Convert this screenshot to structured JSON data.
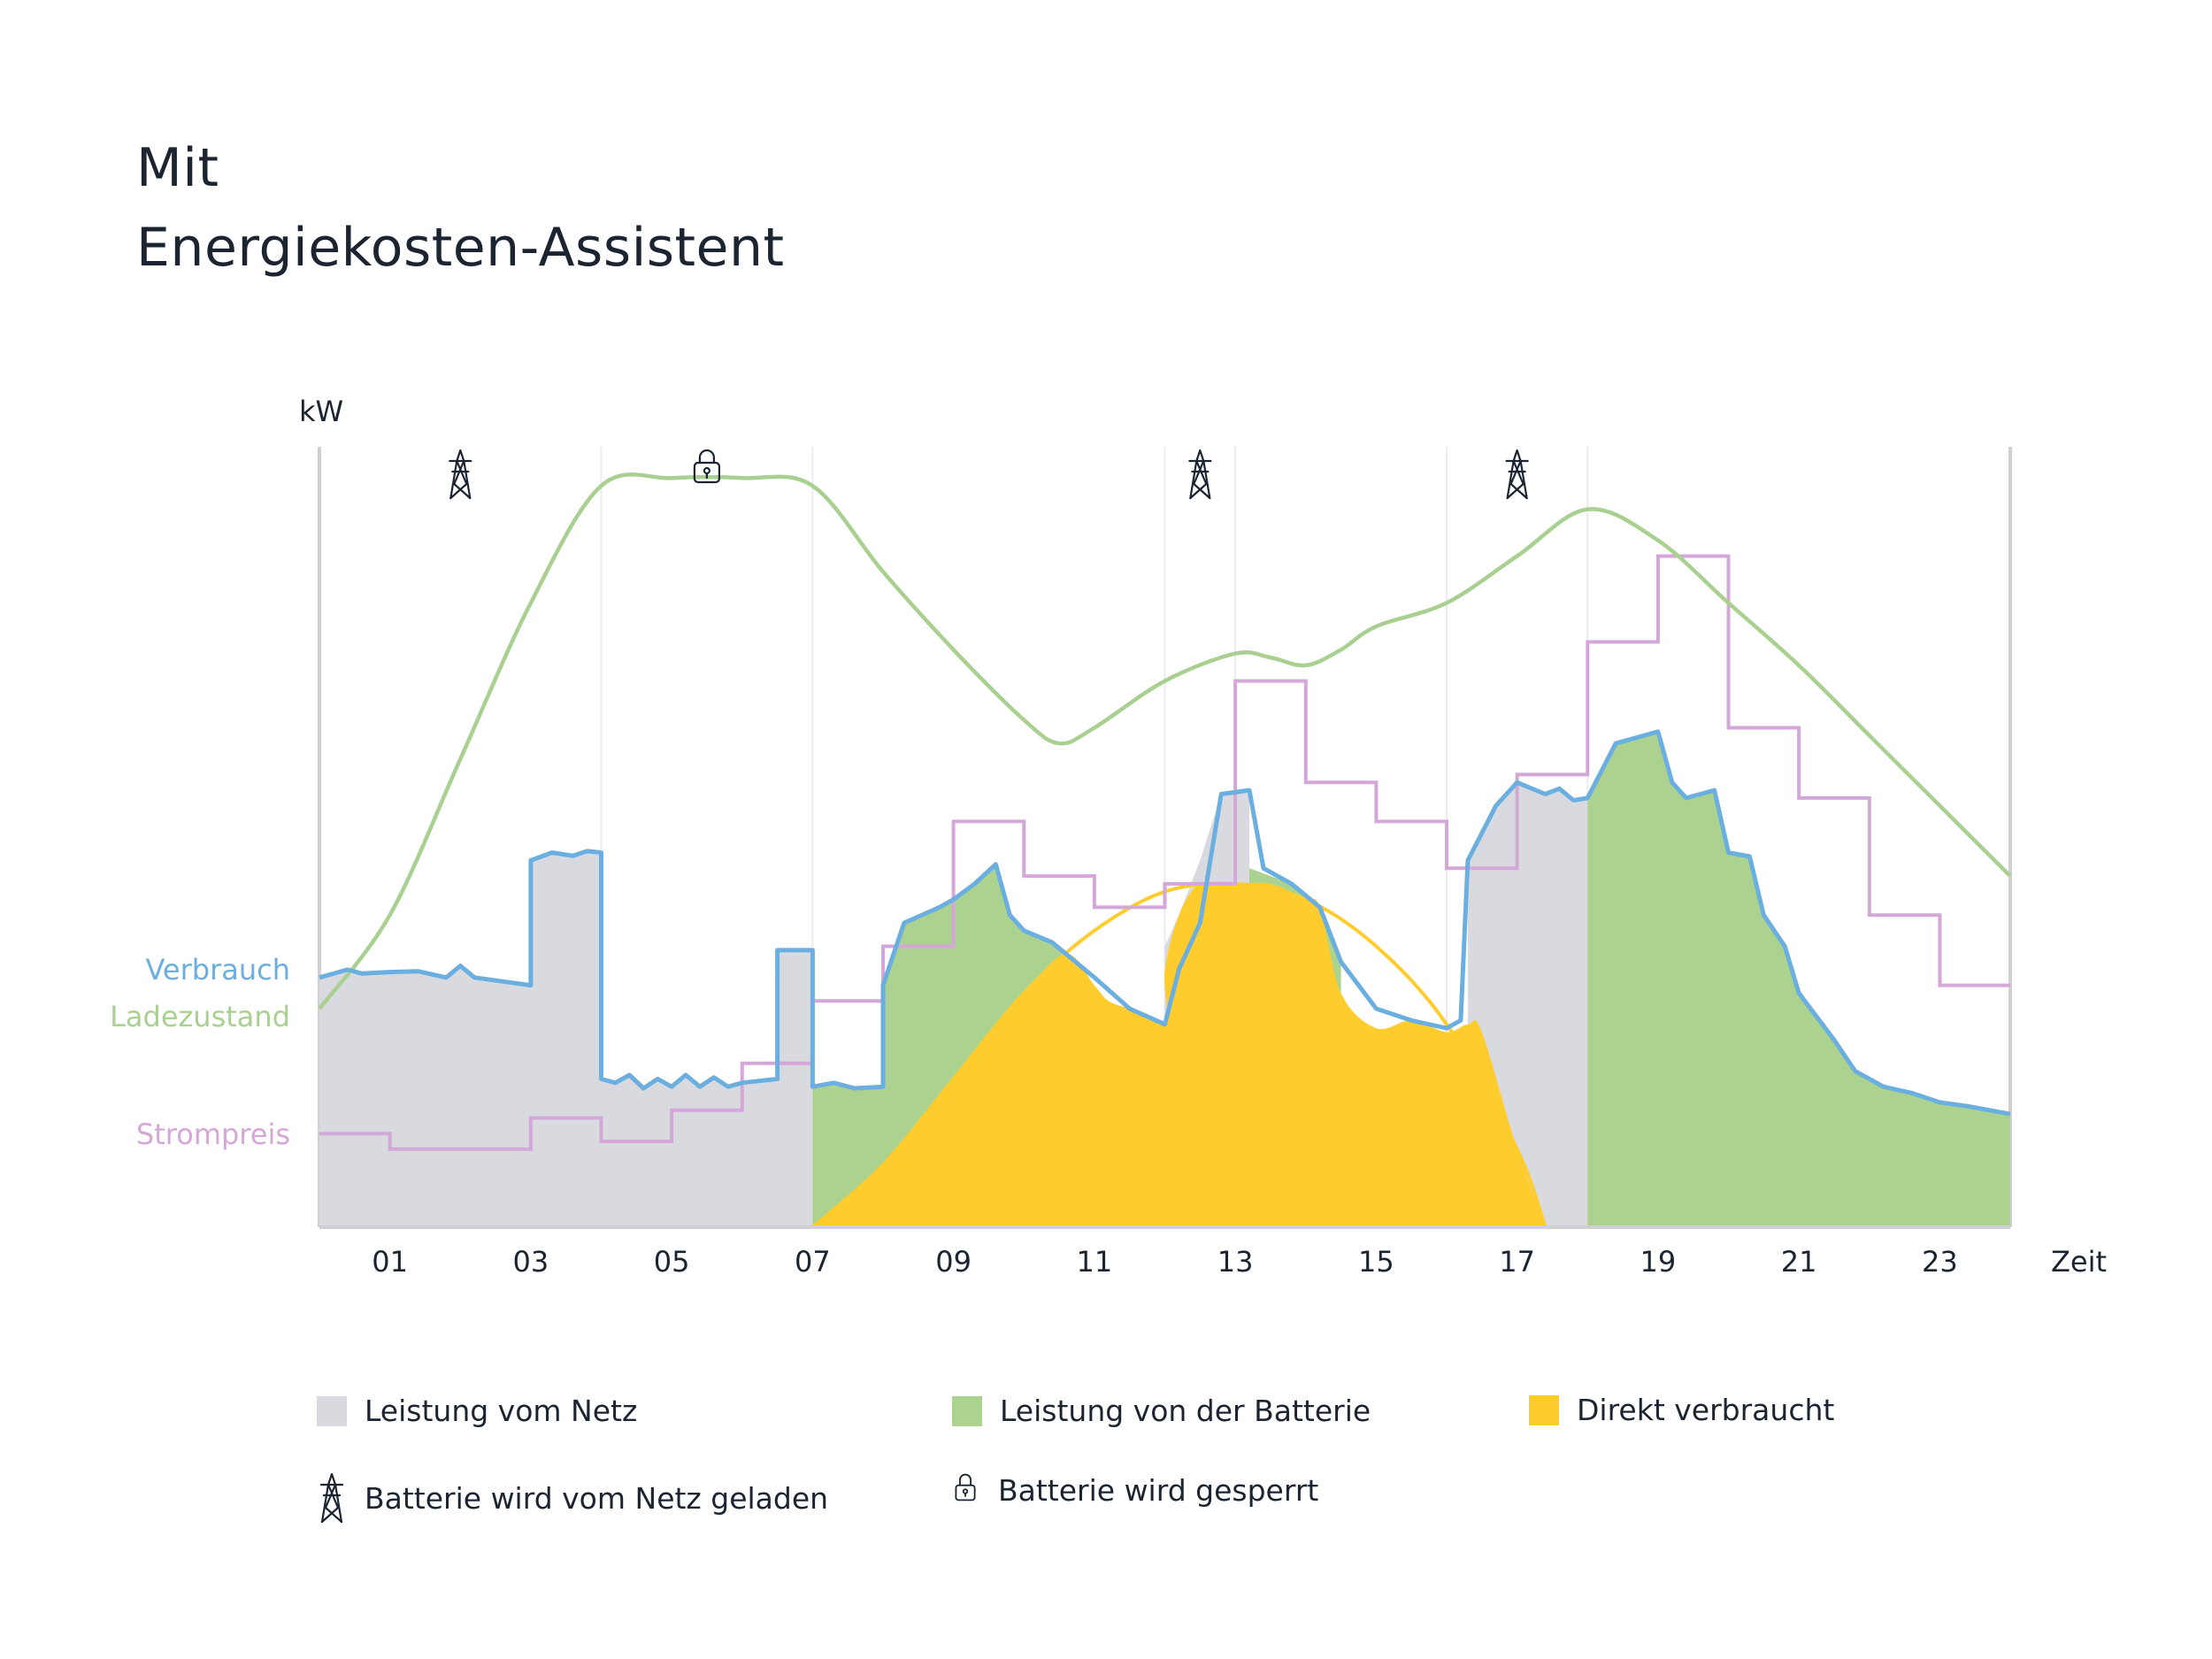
{
  "title": {
    "line1": "Mit",
    "line2": "Energiekosten-Assistent"
  },
  "colors": {
    "grid": "#d8d8dc",
    "verbrauch": "#6aafdf",
    "ladezustand": "#a9d090",
    "strompreis": "#d3a8d8",
    "netz_fill": "#d9dadf",
    "batterie_fill": "#acd290",
    "direkt_fill": "#ffcc2e",
    "icon": "#1b2430"
  },
  "chart_data": {
    "type": "area",
    "ylabel": "kW",
    "xlabel": "Zeit",
    "xlim": [
      0,
      24
    ],
    "ylim": [
      0,
      100
    ],
    "x_ticks": [
      "01",
      "03",
      "05",
      "07",
      "09",
      "11",
      "13",
      "15",
      "17",
      "19",
      "21",
      "23"
    ],
    "series_labels": {
      "verbrauch": "Verbrauch",
      "ladezustand": "Ladezustand",
      "strompreis": "Strompreis"
    },
    "events": [
      {
        "type": "grid-charge",
        "hour": 2
      },
      {
        "type": "lock",
        "hour": 5.5
      },
      {
        "type": "grid-charge",
        "hour": 12.5
      },
      {
        "type": "grid-charge",
        "hour": 17
      }
    ],
    "verbrauch": [
      [
        0,
        32
      ],
      [
        0.4,
        33
      ],
      [
        0.6,
        32.5
      ],
      [
        1,
        32.7
      ],
      [
        1.4,
        32.8
      ],
      [
        1.8,
        32
      ],
      [
        2,
        33.5
      ],
      [
        2.2,
        32
      ],
      [
        2.6,
        31.5
      ],
      [
        3,
        31
      ],
      [
        3,
        47
      ],
      [
        3.3,
        48
      ],
      [
        3.6,
        47.6
      ],
      [
        3.8,
        48.2
      ],
      [
        4,
        48
      ],
      [
        4,
        19
      ],
      [
        4.2,
        18.5
      ],
      [
        4.4,
        19.5
      ],
      [
        4.6,
        17.8
      ],
      [
        4.8,
        19
      ],
      [
        5,
        18
      ],
      [
        5.2,
        19.5
      ],
      [
        5.4,
        18
      ],
      [
        5.6,
        19.2
      ],
      [
        5.8,
        18
      ],
      [
        6,
        18.5
      ],
      [
        6.5,
        19
      ],
      [
        6.5,
        35.5
      ],
      [
        7,
        35.5
      ],
      [
        7,
        18
      ],
      [
        7.3,
        18.5
      ],
      [
        7.6,
        17.8
      ],
      [
        8,
        18
      ],
      [
        8,
        31
      ],
      [
        8.3,
        39
      ],
      [
        8.8,
        41
      ],
      [
        9,
        42
      ],
      [
        9.3,
        44
      ],
      [
        9.6,
        46.5
      ],
      [
        9.8,
        40
      ],
      [
        10,
        38
      ],
      [
        10.4,
        36.5
      ],
      [
        10.6,
        35
      ],
      [
        11,
        32
      ],
      [
        11.5,
        28
      ],
      [
        12,
        26
      ],
      [
        12.2,
        33
      ],
      [
        12.5,
        39
      ],
      [
        12.8,
        55.5
      ],
      [
        13.2,
        56
      ],
      [
        13.4,
        46
      ],
      [
        13.8,
        44
      ],
      [
        14.2,
        41
      ],
      [
        14.5,
        34
      ],
      [
        15,
        28
      ],
      [
        15.5,
        26.5
      ],
      [
        16,
        25.5
      ],
      [
        16.2,
        26.5
      ],
      [
        16.3,
        47
      ],
      [
        16.7,
        54
      ],
      [
        17,
        57
      ],
      [
        17.4,
        55.5
      ],
      [
        17.6,
        56.2
      ],
      [
        17.8,
        54.7
      ],
      [
        18,
        55
      ],
      [
        18.4,
        62
      ],
      [
        18.8,
        63
      ],
      [
        19,
        63.5
      ],
      [
        19.2,
        57
      ],
      [
        19.4,
        55
      ],
      [
        19.8,
        56
      ],
      [
        20,
        48
      ],
      [
        20.3,
        47.5
      ],
      [
        20.5,
        40
      ],
      [
        20.8,
        36
      ],
      [
        21,
        30
      ],
      [
        21.5,
        24
      ],
      [
        21.8,
        20
      ],
      [
        22.2,
        18
      ],
      [
        22.6,
        17.2
      ],
      [
        23,
        16
      ],
      [
        23.4,
        15.5
      ],
      [
        24,
        14.5
      ]
    ],
    "ladezustand": [
      [
        0,
        28
      ],
      [
        1,
        40
      ],
      [
        2,
        60
      ],
      [
        3,
        80
      ],
      [
        4,
        95
      ],
      [
        5,
        96
      ],
      [
        6,
        96
      ],
      [
        7,
        95
      ],
      [
        8,
        84
      ],
      [
        9,
        74
      ],
      [
        10,
        65
      ],
      [
        10.5,
        62
      ],
      [
        11,
        64
      ],
      [
        12,
        70
      ],
      [
        13,
        73.5
      ],
      [
        13.5,
        73
      ],
      [
        14,
        72
      ],
      [
        14.5,
        74
      ],
      [
        15,
        77
      ],
      [
        16,
        80
      ],
      [
        17,
        86
      ],
      [
        18,
        92
      ],
      [
        19,
        88
      ],
      [
        20,
        80
      ],
      [
        21,
        72
      ],
      [
        22,
        63
      ],
      [
        23,
        54
      ],
      [
        24,
        45
      ]
    ],
    "strompreis": [
      0,
      -1,
      2,
      2,
      3,
      4,
      5,
      7,
      11,
      15,
      15,
      13,
      12,
      18,
      30,
      45,
      40,
      35,
      30,
      38,
      52,
      78,
      88,
      70,
      58,
      50,
      45,
      37
    ],
    "strompreis_hourly": [
      12,
      10,
      10,
      14,
      11,
      15,
      21,
      29,
      36,
      52,
      45,
      41,
      44,
      70,
      57,
      52,
      46,
      58,
      75,
      86,
      64,
      55,
      40,
      31
    ],
    "netz": [
      [
        0,
        0
      ],
      [
        0,
        32
      ],
      [
        0.4,
        33
      ],
      [
        0.6,
        32.5
      ],
      [
        1,
        32.7
      ],
      [
        1.4,
        32.8
      ],
      [
        1.8,
        32
      ],
      [
        2,
        33.5
      ],
      [
        2.2,
        32
      ],
      [
        2.6,
        31.5
      ],
      [
        3,
        31
      ],
      [
        3,
        47
      ],
      [
        3.3,
        48
      ],
      [
        3.6,
        47.6
      ],
      [
        3.8,
        48.2
      ],
      [
        4,
        48
      ],
      [
        4,
        19
      ],
      [
        4.2,
        18.5
      ],
      [
        4.4,
        19.5
      ],
      [
        4.6,
        17.8
      ],
      [
        4.8,
        19
      ],
      [
        5,
        18
      ],
      [
        5.2,
        19.5
      ],
      [
        5.4,
        18
      ],
      [
        5.6,
        19.2
      ],
      [
        5.8,
        18
      ],
      [
        6,
        18.5
      ],
      [
        6.5,
        19
      ],
      [
        6.5,
        35.5
      ],
      [
        7,
        35.5
      ],
      [
        7,
        0
      ]
    ],
    "netz2": [
      [
        12,
        0
      ],
      [
        12,
        36
      ],
      [
        12.2,
        40
      ],
      [
        12.5,
        47
      ],
      [
        12.8,
        55.5
      ],
      [
        13.2,
        56
      ],
      [
        13.2,
        0
      ]
    ],
    "netz3": [
      [
        16.3,
        0
      ],
      [
        16.3,
        47
      ],
      [
        16.7,
        54
      ],
      [
        17,
        57
      ],
      [
        17.4,
        55.5
      ],
      [
        17.6,
        56.2
      ],
      [
        17.8,
        54.7
      ],
      [
        18,
        55
      ],
      [
        18,
        0
      ]
    ],
    "batterie": [
      [
        7,
        0
      ],
      [
        7,
        18
      ],
      [
        7.3,
        18.5
      ],
      [
        7.6,
        17.8
      ],
      [
        8,
        18
      ],
      [
        8,
        31
      ],
      [
        8.3,
        39
      ],
      [
        8.8,
        41
      ],
      [
        9,
        42
      ],
      [
        9.3,
        44
      ],
      [
        9.6,
        46.5
      ],
      [
        9.8,
        40
      ],
      [
        10,
        38
      ],
      [
        10.4,
        36.5
      ],
      [
        10.6,
        35
      ],
      [
        10.6,
        0
      ]
    ],
    "batterie2": [
      [
        13.2,
        0
      ],
      [
        13.2,
        46
      ],
      [
        13.8,
        44
      ],
      [
        14.2,
        41
      ],
      [
        14.5,
        34
      ],
      [
        14.5,
        0
      ]
    ],
    "batterie3": [
      [
        18,
        0
      ],
      [
        18,
        55
      ],
      [
        18.4,
        62
      ],
      [
        18.8,
        63
      ],
      [
        19,
        63.5
      ],
      [
        19.2,
        57
      ],
      [
        19.4,
        55
      ],
      [
        19.8,
        56
      ],
      [
        20,
        48
      ],
      [
        20.3,
        47.5
      ],
      [
        20.5,
        40
      ],
      [
        20.8,
        36
      ],
      [
        21,
        30
      ],
      [
        21.5,
        24
      ],
      [
        21.8,
        20
      ],
      [
        22.2,
        18
      ],
      [
        22.6,
        17.2
      ],
      [
        23,
        16
      ],
      [
        23.4,
        15.5
      ],
      [
        24,
        14.5
      ],
      [
        24,
        0
      ]
    ],
    "pv_curve": [
      [
        7,
        0
      ],
      [
        8,
        8
      ],
      [
        9,
        19
      ],
      [
        10,
        30
      ],
      [
        11,
        38
      ],
      [
        12,
        43
      ],
      [
        13,
        44
      ],
      [
        14,
        42
      ],
      [
        15,
        36
      ],
      [
        16,
        26
      ],
      [
        17,
        10
      ],
      [
        17.4,
        0
      ]
    ],
    "direkt": [
      [
        7,
        0
      ],
      [
        8,
        8
      ],
      [
        9,
        19
      ],
      [
        10,
        30
      ],
      [
        10.6,
        35
      ],
      [
        11,
        31
      ],
      [
        11.2,
        29
      ],
      [
        11.5,
        28
      ],
      [
        12,
        26.5
      ],
      [
        12,
        33
      ],
      [
        12.2,
        40
      ],
      [
        12.5,
        44
      ],
      [
        13,
        44
      ],
      [
        13.5,
        44
      ],
      [
        14,
        42
      ],
      [
        14.2,
        41
      ],
      [
        14.5,
        30
      ],
      [
        15,
        25.5
      ],
      [
        15.5,
        26.5
      ],
      [
        16,
        25
      ],
      [
        16.3,
        26
      ],
      [
        16.5,
        25
      ],
      [
        17,
        10
      ],
      [
        17.4,
        0
      ]
    ],
    "legend": [
      {
        "label": "Leistung vom Netz",
        "kind": "swatch",
        "color_key": "netz_fill"
      },
      {
        "label": "Leistung von der Batterie",
        "kind": "swatch",
        "color_key": "batterie_fill"
      },
      {
        "label": "Direkt verbraucht",
        "kind": "swatch",
        "color_key": "direkt_fill"
      },
      {
        "label": "Batterie wird vom Netz geladen",
        "kind": "icon",
        "icon": "power-tower-icon"
      },
      {
        "label": "Batterie wird gesperrt",
        "kind": "icon",
        "icon": "lock-icon"
      }
    ]
  }
}
